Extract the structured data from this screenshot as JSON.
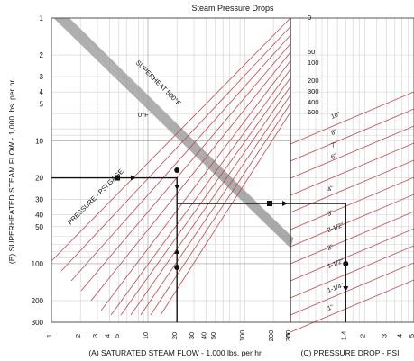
{
  "chart_data": {
    "type": "line",
    "title": "Steam Pressure Drops",
    "xlabel": "(A) SATURATED STEAM FLOW - 1,000 lbs. per hr.",
    "ylabel": "(B) SUPERHEATED STEAM FLOW - 1,000 lbs. per hr.",
    "x2label": "(C) PRESSURE DROP - PSI",
    "x_ticks": [
      "1",
      "2",
      "3",
      "4",
      "5",
      "10",
      "20",
      "30",
      "40",
      "50",
      "100",
      "200",
      "300"
    ],
    "x_range": [
      1,
      300
    ],
    "x2_ticks": [
      ".5",
      "1.4",
      "2",
      "3",
      "4",
      "5"
    ],
    "y_ticks": [
      "1",
      "2",
      "3",
      "4",
      "5",
      "10",
      "20",
      "30",
      "40",
      "50",
      "100",
      "200",
      "300"
    ],
    "pressure_labels": [
      "0",
      "50",
      "100",
      "200",
      "300",
      "400",
      "600"
    ],
    "pressure_axis_label": "PRESSURE - PSI GAGE",
    "superheat_labels": [
      "SUPERHEAT 500°F",
      "0°F"
    ],
    "pipe_sizes": [
      "10\"",
      "8\"",
      "7\"",
      "6\"",
      "4\"",
      "3\"",
      "2-1/2\"",
      "2\"",
      "1-1/2\"",
      "1-1/4\"",
      "1\""
    ],
    "example_path": {
      "superheated_flow": 20,
      "saturated_flow": 20,
      "pressure_drop": 1.4
    },
    "colors": {
      "pressure_lines": "#c2454e",
      "pipe_lines": "#c2454e",
      "superheat_band": "#9a9a9a",
      "path": "#111111",
      "grid": "#d0d0d0"
    }
  }
}
